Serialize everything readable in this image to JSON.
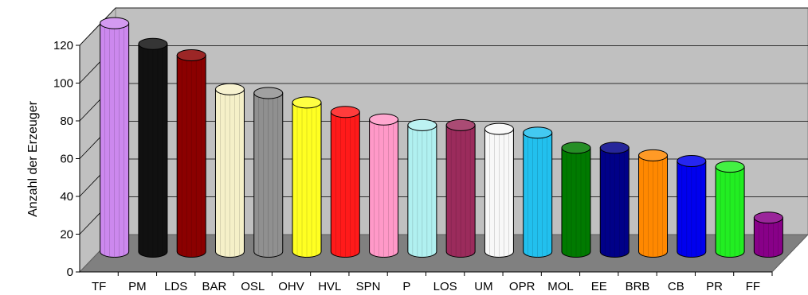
{
  "chart_data": {
    "type": "bar",
    "title": "",
    "xlabel": "",
    "ylabel": "Anzahl der Erzeuger",
    "ylim": [
      0,
      120
    ],
    "yticks": [
      0,
      20,
      40,
      60,
      80,
      100,
      120
    ],
    "grid": true,
    "legend": "none",
    "categories": [
      "TF",
      "PM",
      "LDS",
      "BAR",
      "OSL",
      "OHV",
      "HVL",
      "SPN",
      "P",
      "LOS",
      "UM",
      "OPR",
      "MOL",
      "EE",
      "BRB",
      "CB",
      "PR",
      "FF"
    ],
    "values": [
      121,
      110,
      104,
      86,
      84,
      79,
      74,
      70,
      67,
      67,
      65,
      63,
      55,
      55,
      51,
      48,
      45,
      18
    ],
    "colors": [
      "#cc88ee",
      "#111111",
      "#8b0000",
      "#f5f0c8",
      "#909090",
      "#ffff22",
      "#ff1a1a",
      "#ff99c8",
      "#b0f0f0",
      "#9b2b5c",
      "#f8f8f8",
      "#22c0ee",
      "#007a00",
      "#000088",
      "#ff8800",
      "#0000ee",
      "#22ee22",
      "#880088"
    ]
  }
}
